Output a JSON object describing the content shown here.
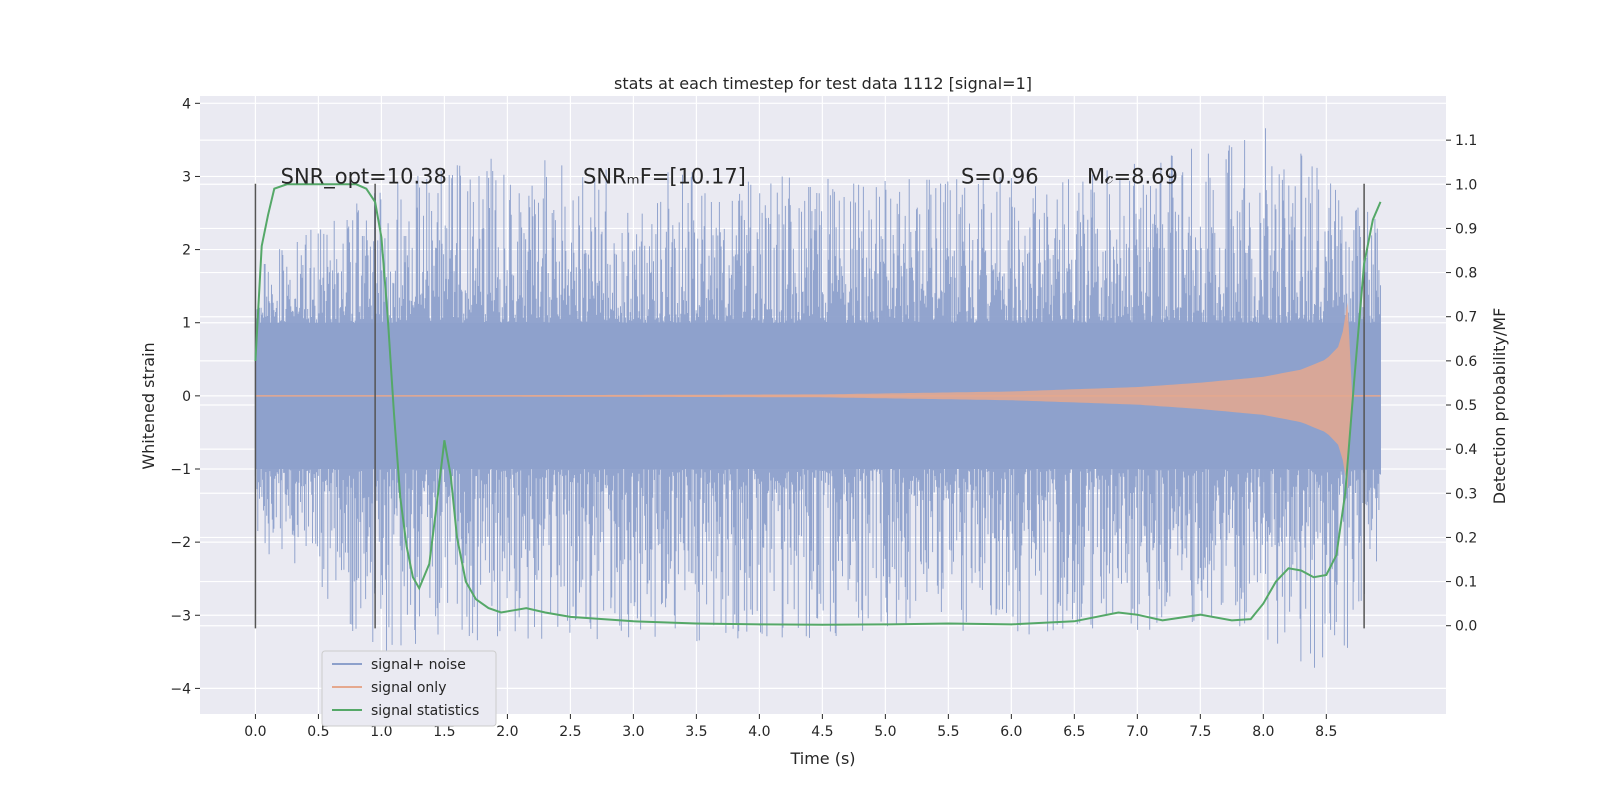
{
  "chart_data": {
    "type": "line",
    "title": "stats at each timestep for test data 1112 [signal=1]",
    "xlabel": "Time (s)",
    "ylabel": "Whitened strain",
    "y2label": "Detection probability/MF",
    "xlim": [
      -0.44,
      9.45
    ],
    "ylim": [
      -4.35,
      4.1
    ],
    "y2lim": [
      -0.2,
      1.2
    ],
    "x_ticks": [
      0.0,
      0.5,
      1.0,
      1.5,
      2.0,
      2.5,
      3.0,
      3.5,
      4.0,
      4.5,
      5.0,
      5.5,
      6.0,
      6.5,
      7.0,
      7.5,
      8.0,
      8.5
    ],
    "x_tick_labels": [
      "0.0",
      "0.5",
      "1.0",
      "1.5",
      "2.0",
      "2.5",
      "3.0",
      "3.5",
      "4.0",
      "4.5",
      "5.0",
      "5.5",
      "6.0",
      "6.5",
      "7.0",
      "7.5",
      "8.0",
      "8.5"
    ],
    "y_ticks": [
      -4,
      -3,
      -2,
      -1,
      0,
      1,
      2,
      3,
      4
    ],
    "y_tick_labels": [
      "−4",
      "−3",
      "−2",
      "−1",
      "0",
      "1",
      "2",
      "3",
      "4"
    ],
    "y2_ticks": [
      0.0,
      0.1,
      0.2,
      0.3,
      0.4,
      0.5,
      0.6,
      0.7,
      0.8,
      0.9,
      1.0,
      1.1
    ],
    "y2_tick_labels": [
      "0.0",
      "0.1",
      "0.2",
      "0.3",
      "0.4",
      "0.5",
      "0.6",
      "0.7",
      "0.8",
      "0.9",
      "1.0",
      "1.1"
    ],
    "grid": true,
    "legend_position": "lower-left",
    "annotations": [
      {
        "text": "SNR_opt=10.38",
        "x": 0.2,
        "y": 3.0
      },
      {
        "text": "SNRₘF=[10.17]",
        "x": 2.6,
        "y": 3.0
      },
      {
        "text": "S=0.96",
        "x": 5.6,
        "y": 3.0
      },
      {
        "text": "M𝒸=8.69",
        "x": 6.6,
        "y": 3.0
      }
    ],
    "vertical_lines": {
      "x": [
        0.0,
        0.95,
        8.8
      ],
      "y_range": [
        -3.18,
        2.9
      ],
      "color": "#555555"
    },
    "series": [
      {
        "name": "signal+ noise",
        "axis": "left",
        "color": "#8da0cb",
        "x_range": [
          0.0,
          8.93
        ],
        "envelope_core": 1.0,
        "envelope_max": [
          {
            "x": 0.0,
            "y": 1.8
          },
          {
            "x": 0.6,
            "y": 2.6
          },
          {
            "x": 1.7,
            "y": 3.3
          },
          {
            "x": 4.0,
            "y": 3.0
          },
          {
            "x": 6.5,
            "y": 3.0
          },
          {
            "x": 8.05,
            "y": 3.7
          },
          {
            "x": 8.75,
            "y": 2.7
          },
          {
            "x": 8.93,
            "y": 2.5
          }
        ],
        "envelope_min": [
          {
            "x": 0.0,
            "y": -2.0
          },
          {
            "x": 1.0,
            "y": -3.6
          },
          {
            "x": 1.2,
            "y": -3.4
          },
          {
            "x": 4.0,
            "y": -3.35
          },
          {
            "x": 7.9,
            "y": -3.2
          },
          {
            "x": 8.55,
            "y": -4.0
          },
          {
            "x": 8.93,
            "y": -2.3
          }
        ]
      },
      {
        "name": "signal only",
        "axis": "left",
        "color": "#e5a88e",
        "amplitude": [
          {
            "x": 0.0,
            "y": 0.0
          },
          {
            "x": 4.5,
            "y": 0.02
          },
          {
            "x": 6.0,
            "y": 0.06
          },
          {
            "x": 7.0,
            "y": 0.12
          },
          {
            "x": 7.5,
            "y": 0.18
          },
          {
            "x": 8.0,
            "y": 0.26
          },
          {
            "x": 8.3,
            "y": 0.36
          },
          {
            "x": 8.5,
            "y": 0.5
          },
          {
            "x": 8.6,
            "y": 0.68
          },
          {
            "x": 8.65,
            "y": 1.0
          },
          {
            "x": 8.68,
            "y": 1.45
          },
          {
            "x": 8.7,
            "y": 0.0
          },
          {
            "x": 8.93,
            "y": 0.0
          }
        ]
      },
      {
        "name": "signal statistics",
        "axis": "right",
        "color": "#55a868",
        "points": [
          {
            "x": 0.0,
            "y": 0.6
          },
          {
            "x": 0.05,
            "y": 0.86
          },
          {
            "x": 0.1,
            "y": 0.93
          },
          {
            "x": 0.15,
            "y": 0.99
          },
          {
            "x": 0.25,
            "y": 1.0
          },
          {
            "x": 0.5,
            "y": 1.0
          },
          {
            "x": 0.7,
            "y": 1.0
          },
          {
            "x": 0.8,
            "y": 1.0
          },
          {
            "x": 0.88,
            "y": 0.99
          },
          {
            "x": 0.95,
            "y": 0.96
          },
          {
            "x": 1.0,
            "y": 0.88
          },
          {
            "x": 1.05,
            "y": 0.7
          },
          {
            "x": 1.1,
            "y": 0.48
          },
          {
            "x": 1.15,
            "y": 0.29
          },
          {
            "x": 1.2,
            "y": 0.18
          },
          {
            "x": 1.25,
            "y": 0.11
          },
          {
            "x": 1.3,
            "y": 0.085
          },
          {
            "x": 1.38,
            "y": 0.14
          },
          {
            "x": 1.45,
            "y": 0.3
          },
          {
            "x": 1.5,
            "y": 0.42
          },
          {
            "x": 1.55,
            "y": 0.34
          },
          {
            "x": 1.6,
            "y": 0.2
          },
          {
            "x": 1.67,
            "y": 0.1
          },
          {
            "x": 1.75,
            "y": 0.06
          },
          {
            "x": 1.85,
            "y": 0.04
          },
          {
            "x": 1.95,
            "y": 0.03
          },
          {
            "x": 2.05,
            "y": 0.035
          },
          {
            "x": 2.15,
            "y": 0.04
          },
          {
            "x": 2.3,
            "y": 0.03
          },
          {
            "x": 2.5,
            "y": 0.02
          },
          {
            "x": 3.0,
            "y": 0.01
          },
          {
            "x": 3.5,
            "y": 0.005
          },
          {
            "x": 4.0,
            "y": 0.003
          },
          {
            "x": 4.5,
            "y": 0.002
          },
          {
            "x": 5.0,
            "y": 0.003
          },
          {
            "x": 5.5,
            "y": 0.005
          },
          {
            "x": 6.0,
            "y": 0.003
          },
          {
            "x": 6.5,
            "y": 0.01
          },
          {
            "x": 6.85,
            "y": 0.03
          },
          {
            "x": 7.0,
            "y": 0.025
          },
          {
            "x": 7.2,
            "y": 0.012
          },
          {
            "x": 7.5,
            "y": 0.025
          },
          {
            "x": 7.75,
            "y": 0.012
          },
          {
            "x": 7.9,
            "y": 0.015
          },
          {
            "x": 8.0,
            "y": 0.05
          },
          {
            "x": 8.1,
            "y": 0.1
          },
          {
            "x": 8.2,
            "y": 0.13
          },
          {
            "x": 8.3,
            "y": 0.125
          },
          {
            "x": 8.4,
            "y": 0.11
          },
          {
            "x": 8.5,
            "y": 0.115
          },
          {
            "x": 8.58,
            "y": 0.16
          },
          {
            "x": 8.65,
            "y": 0.3
          },
          {
            "x": 8.72,
            "y": 0.55
          },
          {
            "x": 8.8,
            "y": 0.82
          },
          {
            "x": 8.87,
            "y": 0.92
          },
          {
            "x": 8.93,
            "y": 0.96
          }
        ]
      }
    ]
  },
  "colors": {
    "plot_background": "#eaeaf2",
    "grid": "#ffffff",
    "text": "#262626",
    "axis_line": "#000000"
  }
}
